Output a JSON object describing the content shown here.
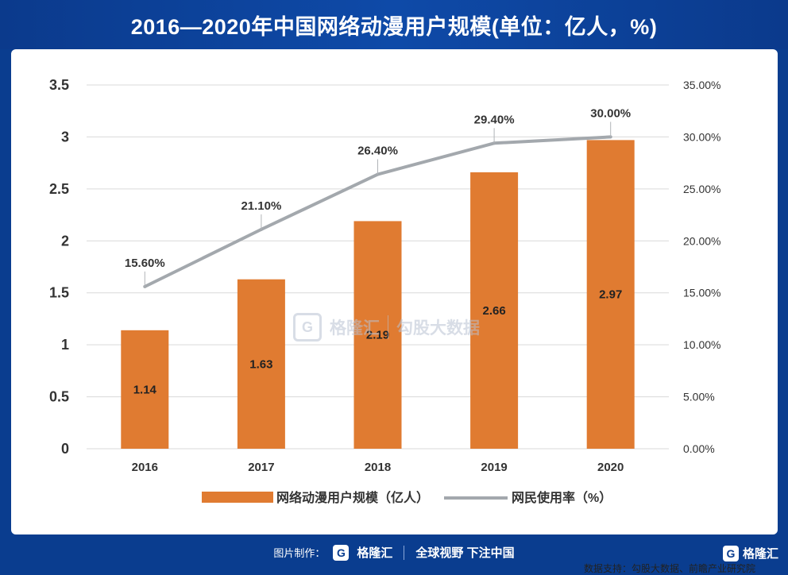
{
  "title": "2016—2020年中国网络动漫用户规模(单位：亿人，%)",
  "chart_data": {
    "type": "bar",
    "categories": [
      "2016",
      "2017",
      "2018",
      "2019",
      "2020"
    ],
    "series": [
      {
        "name": "网络动漫用户规模（亿人）",
        "type": "bar",
        "axis": "left",
        "values": [
          1.14,
          1.63,
          2.19,
          2.66,
          2.97
        ],
        "labels": [
          "1.14",
          "1.63",
          "2.19",
          "2.66",
          "2.97"
        ],
        "color": "#e07b31"
      },
      {
        "name": "网民使用率（%）",
        "type": "line",
        "axis": "right",
        "values": [
          15.6,
          21.1,
          26.4,
          29.4,
          30.0
        ],
        "labels": [
          "15.60%",
          "21.10%",
          "26.40%",
          "29.40%",
          "30.00%"
        ],
        "color": "#a3a8ad"
      }
    ],
    "y_left": {
      "range": [
        0,
        3.5
      ],
      "ticks": [
        "0",
        "0.5",
        "1",
        "1.5",
        "2",
        "2.5",
        "3",
        "3.5"
      ]
    },
    "y_right": {
      "range": [
        0,
        35
      ],
      "ticks": [
        "0.00%",
        "5.00%",
        "10.00%",
        "15.00%",
        "20.00%",
        "25.00%",
        "30.00%",
        "35.00%"
      ]
    },
    "grid": true,
    "legend_position": "bottom"
  },
  "source": "数据支持：勾股大数据、前瞻产业研究院",
  "watermark": {
    "brand1": "格隆汇",
    "brand2": "勾股大数据"
  },
  "footer": {
    "made_by": "图片制作：",
    "brand": "格隆汇",
    "slogan": "全球视野 下注中国",
    "corner_brand": "格隆汇"
  },
  "colors": {
    "background": "#0a3d8f",
    "bar": "#e07b31",
    "line": "#a3a8ad"
  }
}
